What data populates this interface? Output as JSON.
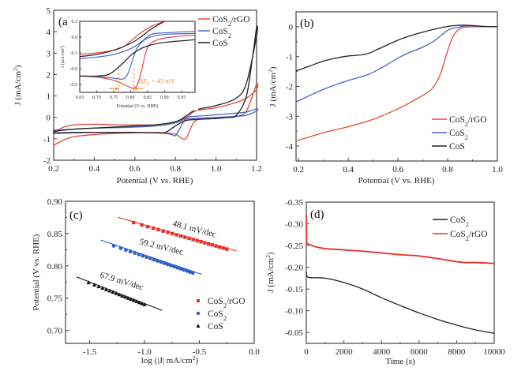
{
  "chart_data": [
    {
      "id": "a",
      "type": "line",
      "panel_label": "(a)",
      "xlabel": "Potential (V vs. RHE)",
      "ylabel": "J (mA/cm²)",
      "xlim": [
        0.2,
        1.2
      ],
      "ylim": [
        -2,
        5
      ],
      "xticks": [
        "0.2",
        "0.4",
        "0.6",
        "0.8",
        "1.0",
        "1.2"
      ],
      "yticks": [
        "-2",
        "-1",
        "0",
        "1",
        "2",
        "3",
        "4",
        "5"
      ],
      "legend": {
        "placement": "top-right",
        "entries": [
          "CoS₂/rGO",
          "CoS₂",
          "CoS"
        ]
      },
      "series": [
        {
          "name": "CoS₂/rGO",
          "color": "#e8473a",
          "x": [
            0.2,
            0.25,
            0.3,
            0.4,
            0.5,
            0.6,
            0.7,
            0.75,
            0.8,
            0.85,
            0.9,
            1.0,
            1.1,
            1.15,
            1.2,
            1.2,
            1.15,
            1.1,
            1.0,
            0.9,
            0.85,
            0.83,
            0.8,
            0.75,
            0.7,
            0.6,
            0.5,
            0.4,
            0.3,
            0.25,
            0.2
          ],
          "y": [
            -1.3,
            -1.05,
            -0.9,
            -0.8,
            -0.75,
            -0.72,
            -0.7,
            -0.72,
            -0.78,
            -1.0,
            -0.15,
            -0.05,
            0.05,
            0.3,
            1.55,
            1.3,
            0.9,
            0.7,
            0.45,
            0.3,
            -0.05,
            -0.15,
            -0.25,
            -0.35,
            -0.35,
            -0.35,
            -0.35,
            -0.32,
            -0.35,
            -0.45,
            -0.7
          ]
        },
        {
          "name": "CoS₂",
          "color": "#4767c7",
          "x": [
            0.2,
            0.3,
            0.4,
            0.5,
            0.6,
            0.7,
            0.75,
            0.78,
            0.8,
            0.82,
            0.85,
            0.9,
            1.0,
            1.1,
            1.15,
            1.2,
            1.2,
            1.15,
            1.1,
            1.0,
            0.9,
            0.85,
            0.8,
            0.7,
            0.6,
            0.5,
            0.4,
            0.3,
            0.2
          ],
          "y": [
            -0.75,
            -0.72,
            -0.7,
            -0.7,
            -0.7,
            -0.72,
            -0.75,
            -0.8,
            -0.85,
            -0.55,
            -0.1,
            -0.05,
            0.0,
            0.05,
            0.1,
            0.3,
            0.4,
            0.25,
            0.2,
            0.12,
            0.05,
            0.0,
            -0.25,
            -0.4,
            -0.45,
            -0.48,
            -0.5,
            -0.55,
            -0.6
          ]
        },
        {
          "name": "CoS",
          "color": "#222222",
          "x": [
            0.2,
            0.3,
            0.4,
            0.5,
            0.6,
            0.7,
            0.75,
            0.8,
            0.85,
            0.9,
            1.0,
            1.05,
            1.1,
            1.15,
            1.18,
            1.2,
            1.2,
            1.15,
            1.1,
            1.0,
            0.9,
            0.85,
            0.8,
            0.7,
            0.6,
            0.5,
            0.4,
            0.3,
            0.2
          ],
          "y": [
            -0.72,
            -0.7,
            -0.7,
            -0.7,
            -0.7,
            -0.72,
            -0.7,
            -0.4,
            -0.15,
            -0.1,
            -0.05,
            0.0,
            0.1,
            1.0,
            2.8,
            4.2,
            3.8,
            1.6,
            0.9,
            0.55,
            0.35,
            0.05,
            -0.2,
            -0.35,
            -0.4,
            -0.45,
            -0.5,
            -0.55,
            -0.65
          ]
        }
      ],
      "inset": {
        "xlabel": "Potential (V vs. RHE)",
        "ylabel": "J (mA/cm²)",
        "xlim": [
          0.65,
          0.99
        ],
        "ylim": [
          -1.05,
          0.3
        ],
        "xticks": [
          "0.65",
          "0.70",
          "0.75",
          "0.80",
          "0.85",
          "0.90",
          "0.95"
        ],
        "yticks": [
          "0.3",
          "0.0",
          "-0.3",
          "-0.6",
          "-0.9"
        ],
        "annotation": "ΔEₚ = 45 mV",
        "annotation_color": "#ee8a2a",
        "peak_markers_x": [
          0.765,
          0.81
        ],
        "series": [
          {
            "name": "CoS₂/rGO",
            "color": "#e8473a",
            "cathodic": {
              "x": [
                0.65,
                0.7,
                0.75,
                0.78,
                0.8,
                0.81,
                0.82,
                0.83,
                0.85,
                0.88,
                0.92,
                0.99
              ],
              "y": [
                -0.74,
                -0.76,
                -0.82,
                -0.9,
                -0.96,
                -0.97,
                -0.9,
                -0.7,
                -0.2,
                -0.05,
                0.0,
                0.04
              ]
            },
            "anodic": {
              "x": [
                0.65,
                0.7,
                0.75,
                0.78,
                0.8,
                0.83,
                0.86,
                0.9
              ],
              "y": [
                -0.33,
                -0.3,
                -0.25,
                -0.18,
                -0.08,
                0.08,
                0.2,
                0.3
              ]
            }
          },
          {
            "name": "CoS₂",
            "color": "#4767c7",
            "cathodic": {
              "x": [
                0.65,
                0.7,
                0.75,
                0.77,
                0.78,
                0.79,
                0.8,
                0.82,
                0.85,
                0.9,
                0.99
              ],
              "y": [
                -0.74,
                -0.75,
                -0.78,
                -0.8,
                -0.79,
                -0.72,
                -0.55,
                -0.2,
                -0.02,
                0.05,
                0.07
              ]
            },
            "anodic": {
              "x": [
                0.65,
                0.7,
                0.75,
                0.8,
                0.83,
                0.86,
                0.9,
                0.99
              ],
              "y": [
                -0.41,
                -0.38,
                -0.33,
                -0.22,
                -0.1,
                0.05,
                0.08,
                0.11
              ]
            }
          },
          {
            "name": "CoS",
            "color": "#222222",
            "cathodic": {
              "x": [
                0.65,
                0.7,
                0.73,
                0.75,
                0.78,
                0.8,
                0.83,
                0.86,
                0.9,
                0.99
              ],
              "y": [
                -0.74,
                -0.74,
                -0.72,
                -0.65,
                -0.48,
                -0.35,
                -0.22,
                -0.15,
                -0.1,
                -0.05
              ]
            },
            "anodic": {
              "x": [
                0.65,
                0.7,
                0.75,
                0.8,
                0.83,
                0.86,
                0.9
              ],
              "y": [
                -0.37,
                -0.33,
                -0.25,
                -0.12,
                0.0,
                0.15,
                0.3
              ]
            }
          }
        ]
      }
    },
    {
      "id": "b",
      "type": "line",
      "panel_label": "(b)",
      "xlabel": "Potential (V vs. RHE)",
      "ylabel": "J (mA/cm²)",
      "xlim": [
        0.19,
        1.0
      ],
      "ylim": [
        -4.5,
        0.5
      ],
      "xticks": [
        "0.2",
        "0.4",
        "0.6",
        "0.8",
        "1.0"
      ],
      "yticks": [
        "0",
        "-1",
        "-2",
        "-3",
        "-4"
      ],
      "legend": {
        "placement": "bottom-right",
        "entries": [
          "CoS₂/rGO",
          "CoS₂",
          "CoS"
        ]
      },
      "series": [
        {
          "name": "CoS₂/rGO",
          "color": "#e8473a",
          "x": [
            0.19,
            0.3,
            0.4,
            0.5,
            0.6,
            0.7,
            0.74,
            0.77,
            0.8,
            0.82,
            0.84,
            0.86,
            0.9,
            0.95,
            1.0
          ],
          "y": [
            -3.83,
            -3.55,
            -3.35,
            -3.1,
            -2.75,
            -2.3,
            -2.05,
            -1.6,
            -0.8,
            -0.35,
            -0.12,
            -0.03,
            0.0,
            0.0,
            0.0
          ]
        },
        {
          "name": "CoS₂",
          "color": "#4767c7",
          "x": [
            0.19,
            0.3,
            0.4,
            0.48,
            0.55,
            0.6,
            0.65,
            0.7,
            0.75,
            0.8,
            0.84,
            0.88,
            0.95,
            1.0
          ],
          "y": [
            -2.52,
            -2.1,
            -1.8,
            -1.6,
            -1.3,
            -1.05,
            -0.85,
            -0.68,
            -0.45,
            -0.12,
            -0.02,
            0.03,
            0.01,
            0.0
          ]
        },
        {
          "name": "CoS",
          "color": "#222222",
          "x": [
            0.19,
            0.25,
            0.3,
            0.35,
            0.4,
            0.47,
            0.52,
            0.6,
            0.65,
            0.7,
            0.78,
            0.83,
            0.88,
            0.95,
            1.0
          ],
          "y": [
            -1.48,
            -1.3,
            -1.15,
            -1.05,
            -0.98,
            -0.92,
            -0.75,
            -0.45,
            -0.3,
            -0.18,
            -0.02,
            0.04,
            0.05,
            0.01,
            0.0
          ]
        }
      ]
    },
    {
      "id": "c",
      "type": "scatter",
      "panel_label": "(c)",
      "xlabel": "log (|J| mA/cm²)",
      "ylabel": "Potential (V vs. RHE)",
      "xlim": [
        -1.72,
        0.0
      ],
      "ylim": [
        0.68,
        0.9
      ],
      "xticks": [
        "-1.5",
        "-1.0",
        "-0.5",
        "0.0"
      ],
      "yticks": [
        "0.90",
        "0.85",
        "0.80",
        "0.75",
        "0.70"
      ],
      "legend": {
        "placement": "bottom-right",
        "entries": [
          "CoS₂/rGO",
          "CoS₂",
          "CoS"
        ]
      },
      "series": [
        {
          "name": "CoS₂/rGO",
          "color": "#e8312a",
          "marker": "square",
          "slope_label": "48.1 mV/dec",
          "points_x_range": [
            -1.1,
            -0.25
          ],
          "points_y_range": [
            0.867,
            0.826
          ],
          "n_points": 22,
          "fit_x": [
            -1.24,
            -0.16
          ],
          "fit_y": [
            0.875,
            0.823
          ]
        },
        {
          "name": "CoS₂",
          "color": "#2f5fc4",
          "marker": "circle",
          "slope_label": "59.2 mV/dec",
          "points_x_range": [
            -1.28,
            -0.56
          ],
          "points_y_range": [
            0.831,
            0.789
          ],
          "n_points": 22,
          "fit_x": [
            -1.4,
            -0.48
          ],
          "fit_y": [
            0.84,
            0.787
          ]
        },
        {
          "name": "CoS",
          "color": "#111111",
          "marker": "triangle",
          "slope_label": "67.9 mV/dec",
          "points_x_range": [
            -1.51,
            -1.0
          ],
          "points_y_range": [
            0.774,
            0.74
          ],
          "n_points": 18,
          "fit_x": [
            -1.62,
            -0.84
          ],
          "fit_y": [
            0.783,
            0.731
          ]
        }
      ]
    },
    {
      "id": "d",
      "type": "line",
      "panel_label": "(d)",
      "xlabel": "Time (s)",
      "ylabel": "J (mA/cm²)",
      "xlim": [
        0,
        10000
      ],
      "ylim": [
        -0.35,
        -0.025
      ],
      "y_inverted": true,
      "xticks": [
        "0",
        "2000",
        "4000",
        "6000",
        "8000",
        "10000"
      ],
      "yticks": [
        "-0.35",
        "-0.30",
        "-0.25",
        "-0.20",
        "-0.15",
        "-0.10",
        "-0.05"
      ],
      "legend": {
        "placement": "top-right",
        "entries": [
          "CoS₂",
          "CoS₂/rGO"
        ]
      },
      "series": [
        {
          "name": "CoS₂",
          "color": "#222222",
          "x": [
            0,
            30,
            100,
            300,
            1000,
            2000,
            3000,
            4000,
            5000,
            6000,
            7000,
            8000,
            9000,
            10000
          ],
          "y": [
            -0.19,
            -0.18,
            -0.177,
            -0.176,
            -0.175,
            -0.165,
            -0.15,
            -0.13,
            -0.112,
            -0.095,
            -0.08,
            -0.067,
            -0.056,
            -0.048
          ]
        },
        {
          "name": "CoS₂/rGO",
          "color": "#e8312a",
          "x": [
            0,
            20,
            60,
            200,
            500,
            1000,
            2000,
            3000,
            4000,
            5000,
            6000,
            7000,
            8000,
            8500,
            9000,
            10000
          ],
          "y": [
            -0.32,
            -0.26,
            -0.255,
            -0.252,
            -0.247,
            -0.243,
            -0.24,
            -0.237,
            -0.233,
            -0.229,
            -0.226,
            -0.22,
            -0.213,
            -0.211,
            -0.211,
            -0.209
          ]
        }
      ]
    }
  ]
}
